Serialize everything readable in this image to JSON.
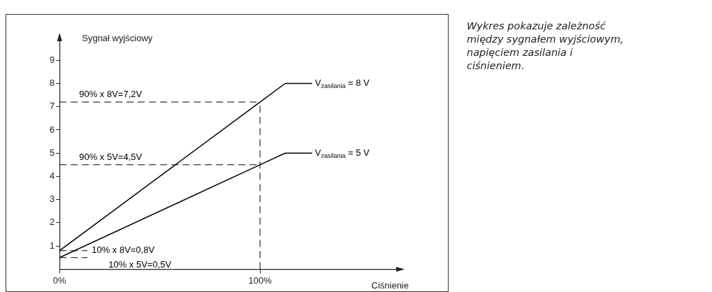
{
  "chart_data": {
    "type": "line",
    "xlabel": "Ciśnienie",
    "ylabel": "Sygnał wyjściowy",
    "x": [
      0,
      100,
      112.5,
      126
    ],
    "series": [
      {
        "name": "V$_{zasilania}$ = 8 V",
        "color": "#000000",
        "values": [
          0.8,
          7.2,
          8,
          8
        ]
      },
      {
        "name": "V$_{zasilania}$ = 5 V",
        "color": "#000000",
        "values": [
          0.5,
          4.5,
          5,
          5
        ]
      }
    ],
    "xlim": [
      0,
      170
    ],
    "ylim": [
      0,
      10
    ],
    "xticks": [
      {
        "value": 0,
        "label": "0%"
      },
      {
        "value": 100,
        "label": "100%"
      }
    ],
    "yticks": [
      1,
      2,
      3,
      4,
      5,
      6,
      7,
      8,
      9
    ],
    "ref_lines": [
      {
        "axis": "y",
        "value": 7.2,
        "label": "90% x 8V=7,2V",
        "line_style": "dashed",
        "color": "#000000"
      },
      {
        "axis": "y",
        "value": 4.5,
        "label": "90% x 5V=4,5V",
        "line_style": "dashed",
        "color": "#000000"
      },
      {
        "axis": "y",
        "value": 0.8,
        "label": "10% x 8V=0,8V",
        "line_style": "dashed",
        "color": "#000000"
      },
      {
        "axis": "y",
        "value": 0.5,
        "label": "10% x 5V=0,5V",
        "line_style": "dashed",
        "color": "#000000"
      },
      {
        "axis": "x",
        "value": 100,
        "label": null,
        "line_style": "dashed",
        "color": "#000000"
      }
    ],
    "annotations": [
      "Wykres pokazuje zależność między sygnałem wyjściowym, napięciem zasilania i ciśnieniem."
    ],
    "grid": false,
    "legend": false,
    "marker": "none",
    "line_style": "solid"
  }
}
